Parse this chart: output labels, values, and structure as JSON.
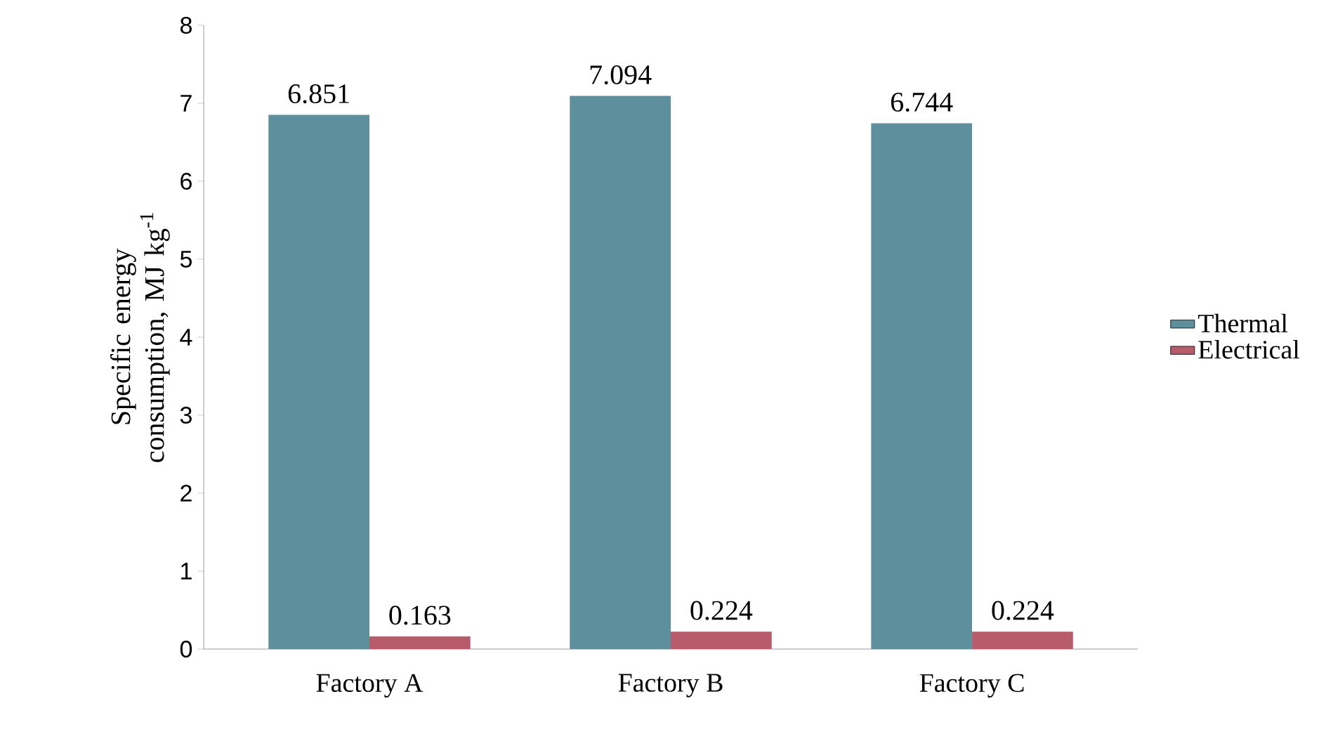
{
  "chart_data": {
    "type": "bar",
    "ylabel": "Specific energy consumption, MJ kg$^{-1}$",
    "categories": [
      "Factory A",
      "Factory B",
      "Factory C"
    ],
    "series": [
      {
        "name": "Thermal",
        "color": "#5e8f9c",
        "values": [
          6.851,
          7.094,
          6.744
        ]
      },
      {
        "name": "Electrical",
        "color": "#b85b6b",
        "values": [
          0.163,
          0.224,
          0.224
        ]
      }
    ],
    "ylim": [
      0,
      8
    ],
    "yticks": [
      0,
      1,
      2,
      3,
      4,
      5,
      6,
      7,
      8
    ],
    "data_labels": true,
    "legend": "right",
    "grid": false
  }
}
